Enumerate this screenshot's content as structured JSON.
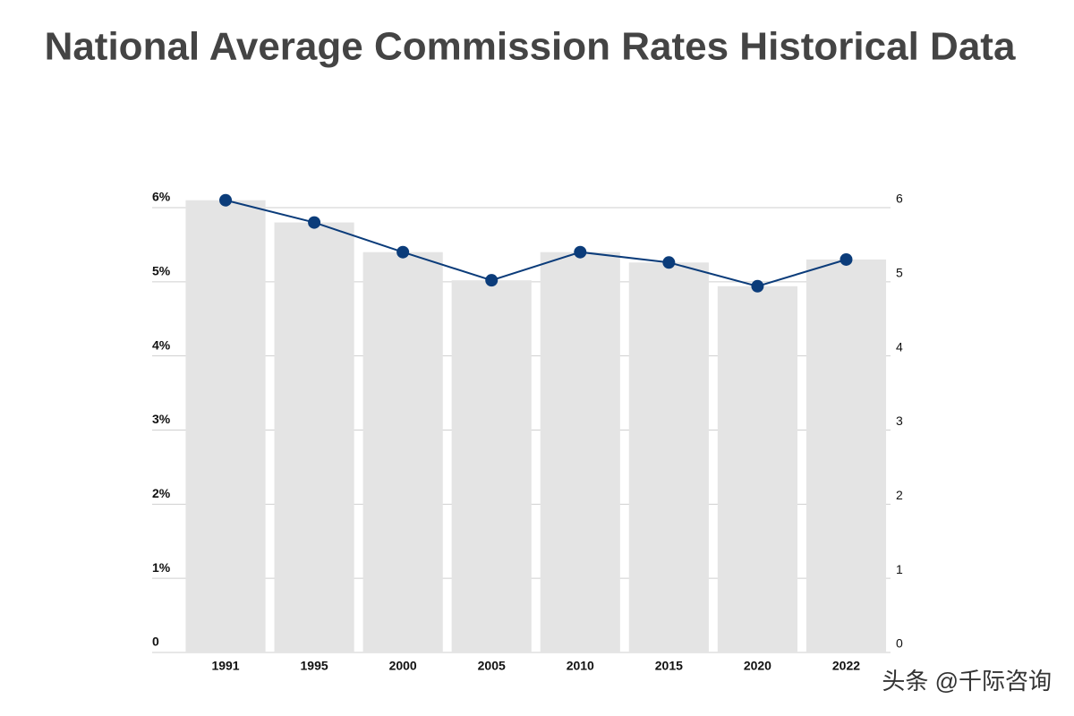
{
  "chart_data": {
    "type": "bar-line",
    "title": "National Average Commission Rates Historical Data",
    "watermark": "头条 @千际咨询",
    "categories": [
      "1991",
      "1995",
      "2000",
      "2005",
      "2010",
      "2015",
      "2020",
      "2022"
    ],
    "series": [
      {
        "type": "bar",
        "color": "#e4e4e4",
        "values": [
          6.1,
          5.8,
          5.4,
          5.02,
          5.4,
          5.26,
          4.94,
          5.3
        ]
      },
      {
        "type": "line",
        "axis": "y2",
        "color": "#0b3c7a",
        "values": [
          6.1,
          5.8,
          5.4,
          5.02,
          5.4,
          5.26,
          4.94,
          5.3
        ]
      }
    ],
    "ylim": [
      0,
      6
    ],
    "yticks": [
      0,
      {
        "value": 1,
        "label": "1%"
      },
      {
        "value": 2,
        "label": "2%"
      },
      {
        "value": 3,
        "label": "3%"
      },
      {
        "value": 4,
        "label": "4%"
      },
      {
        "value": 5,
        "label": "5%"
      },
      {
        "value": 6,
        "label": "6%"
      }
    ],
    "y2lim": [
      0,
      6
    ],
    "y2ticks": [
      0,
      1,
      2,
      3,
      4,
      5,
      6
    ],
    "grid": true
  }
}
